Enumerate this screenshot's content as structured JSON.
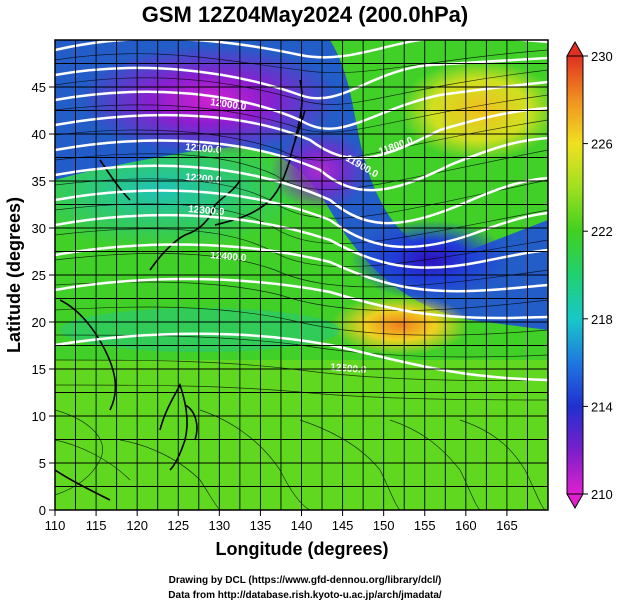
{
  "title": "GSM 12Z04May2024 (200.0hPa)",
  "xlabel": "Longitude (degrees)",
  "ylabel": "Latitude  (degrees)",
  "credits": [
    "Drawing by DCL (https://www.gfd-dennou.org/library/dcl/)",
    "Data from http://database.rish.kyoto-u.ac.jp/arch/jmadata/"
  ],
  "chart_data": {
    "type": "heatmap",
    "title": "GSM 12Z04May2024 (200.0hPa)",
    "xlabel": "Longitude (degrees)",
    "ylabel": "Latitude  (degrees)",
    "xlim": [
      110,
      170
    ],
    "ylim": [
      0,
      50
    ],
    "xticks": [
      110,
      115,
      120,
      125,
      130,
      135,
      140,
      145,
      150,
      155,
      160,
      165
    ],
    "yticks": [
      0,
      5,
      10,
      15,
      20,
      25,
      30,
      35,
      40,
      45
    ],
    "grid": true,
    "colorbar": {
      "range": [
        210,
        230
      ],
      "ticks": [
        210,
        214,
        218,
        222,
        226,
        230
      ],
      "colors": [
        "#e020d0",
        "#7a1fc9",
        "#2030d0",
        "#1f78e0",
        "#18c8c8",
        "#20d070",
        "#40d020",
        "#a0e020",
        "#f0e020",
        "#f09020",
        "#e03020"
      ]
    },
    "contour_labels": [
      {
        "text": "12000.0"
      },
      {
        "text": "12100.0"
      },
      {
        "text": "12200.0"
      },
      {
        "text": "12300.0"
      },
      {
        "text": "12400.0"
      },
      {
        "text": "11900.0"
      },
      {
        "text": "11800.0"
      },
      {
        "text": "12500.0"
      }
    ]
  }
}
